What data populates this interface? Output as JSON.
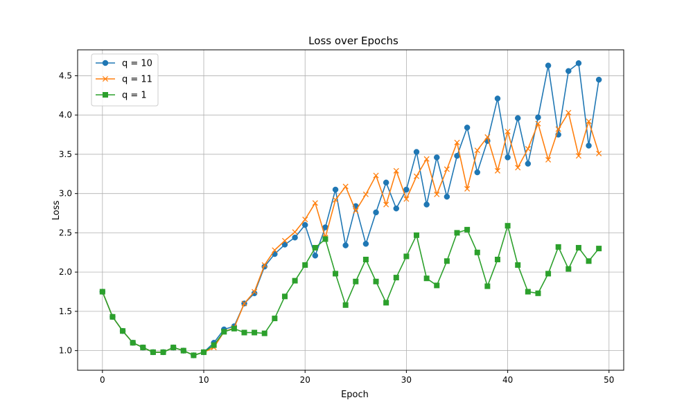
{
  "chart_data": {
    "type": "line",
    "title": "Loss over Epochs",
    "xlabel": "Epoch",
    "ylabel": "Loss",
    "xlim": [
      -2.45,
      51.45
    ],
    "ylim": [
      0.75,
      4.83
    ],
    "xticks": [
      0,
      10,
      20,
      30,
      40,
      50
    ],
    "yticks": [
      1.0,
      1.5,
      2.0,
      2.5,
      3.0,
      3.5,
      4.0,
      4.5
    ],
    "xtick_labels": [
      "0",
      "10",
      "20",
      "30",
      "40",
      "50"
    ],
    "ytick_labels": [
      "1.0",
      "1.5",
      "2.0",
      "2.5",
      "3.0",
      "3.5",
      "4.0",
      "4.5"
    ],
    "grid": true,
    "legend_position": "top-left",
    "x": [
      0,
      1,
      2,
      3,
      4,
      5,
      6,
      7,
      8,
      9,
      10,
      11,
      12,
      13,
      14,
      15,
      16,
      17,
      18,
      19,
      20,
      21,
      22,
      23,
      24,
      25,
      26,
      27,
      28,
      29,
      30,
      31,
      32,
      33,
      34,
      35,
      36,
      37,
      38,
      39,
      40,
      41,
      42,
      43,
      44,
      45,
      46,
      47,
      48,
      49
    ],
    "series": [
      {
        "name": "q = 10",
        "color": "#1f77b4",
        "marker": "circle",
        "values": [
          1.75,
          1.43,
          1.25,
          1.1,
          1.04,
          0.98,
          0.98,
          1.04,
          1.0,
          0.94,
          0.98,
          1.1,
          1.27,
          1.31,
          1.6,
          1.73,
          2.07,
          2.23,
          2.35,
          2.44,
          2.6,
          2.21,
          2.57,
          3.05,
          2.34,
          2.84,
          2.36,
          2.76,
          3.14,
          2.81,
          3.05,
          3.53,
          2.86,
          3.46,
          2.96,
          3.48,
          3.84,
          3.27,
          3.67,
          4.21,
          3.46,
          3.96,
          3.38,
          3.97,
          4.63,
          3.75,
          4.56,
          4.66,
          3.61,
          4.45
        ]
      },
      {
        "name": "q = 11",
        "color": "#ff7f0e",
        "marker": "x",
        "values": [
          1.75,
          1.43,
          1.25,
          1.1,
          1.04,
          0.98,
          0.98,
          1.04,
          1.0,
          0.94,
          0.98,
          1.04,
          1.24,
          1.29,
          1.6,
          1.75,
          2.09,
          2.28,
          2.4,
          2.51,
          2.67,
          2.88,
          2.44,
          2.92,
          3.09,
          2.78,
          2.99,
          3.23,
          2.86,
          3.29,
          2.93,
          3.22,
          3.44,
          2.99,
          3.31,
          3.65,
          3.06,
          3.55,
          3.72,
          3.29,
          3.79,
          3.33,
          3.57,
          3.89,
          3.43,
          3.82,
          4.03,
          3.48,
          3.92,
          3.51
        ]
      },
      {
        "name": "q = 1",
        "color": "#2ca02c",
        "marker": "square",
        "values": [
          1.75,
          1.43,
          1.25,
          1.1,
          1.04,
          0.98,
          0.98,
          1.04,
          1.0,
          0.94,
          0.98,
          1.07,
          1.24,
          1.28,
          1.23,
          1.23,
          1.22,
          1.41,
          1.69,
          1.89,
          2.09,
          2.31,
          2.42,
          1.98,
          1.58,
          1.88,
          2.16,
          1.88,
          1.61,
          1.93,
          2.2,
          2.47,
          1.92,
          1.83,
          2.14,
          2.5,
          2.54,
          2.25,
          1.82,
          2.16,
          2.59,
          2.09,
          1.75,
          1.73,
          1.98,
          2.32,
          2.04,
          2.31,
          2.14,
          2.3
        ]
      }
    ]
  }
}
